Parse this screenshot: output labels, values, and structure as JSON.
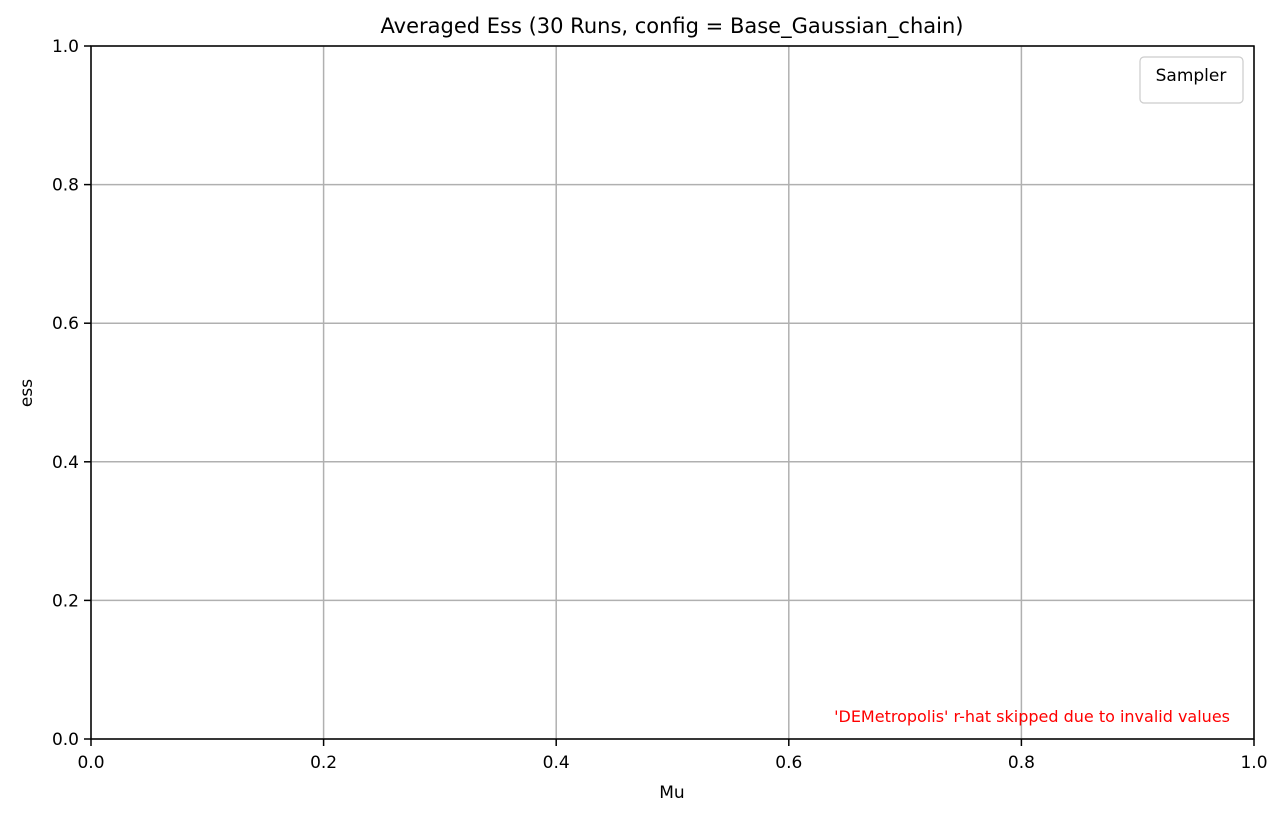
{
  "chart_data": {
    "type": "line",
    "title": "Averaged Ess (30 Runs, config = Base_Gaussian_chain)",
    "xlabel": "Mu",
    "ylabel": "ess",
    "xlim": [
      0.0,
      1.0
    ],
    "ylim": [
      0.0,
      1.0
    ],
    "x_ticks": [
      "0.0",
      "0.2",
      "0.4",
      "0.6",
      "0.8",
      "1.0"
    ],
    "y_ticks": [
      "0.0",
      "0.2",
      "0.4",
      "0.6",
      "0.8",
      "1.0"
    ],
    "x_tick_values": [
      0.0,
      0.2,
      0.4,
      0.6,
      0.8,
      1.0
    ],
    "y_tick_values": [
      0.0,
      0.2,
      0.4,
      0.6,
      0.8,
      1.0
    ],
    "grid": true,
    "legend": {
      "title": "Sampler",
      "placement": "top-right",
      "entries": []
    },
    "series": [],
    "annotation": {
      "text": "'DEMetropolis' r-hat skipped due to invalid values",
      "color": "#ff0000",
      "placement": "bottom-right"
    }
  }
}
